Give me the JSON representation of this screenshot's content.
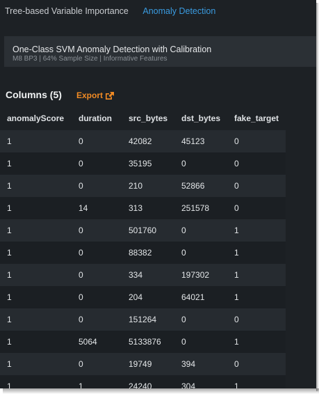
{
  "tabs": [
    {
      "label": "Tree-based Variable Importance",
      "active": false
    },
    {
      "label": "Anomaly Detection",
      "active": true
    }
  ],
  "model": {
    "title": "One-Class SVM Anomaly Detection with Calibration",
    "subtitle": "M8 BP3 | 64% Sample Size | Informative Features"
  },
  "columns_heading": "Columns (5)",
  "export_label": "Export",
  "export_icon": "external-link-icon",
  "table": {
    "headers": [
      "anomalyScore",
      "duration",
      "src_bytes",
      "dst_bytes",
      "fake_target"
    ],
    "rows": [
      [
        "1",
        "0",
        "42082",
        "45123",
        "0"
      ],
      [
        "1",
        "0",
        "35195",
        "0",
        "0"
      ],
      [
        "1",
        "0",
        "210",
        "52866",
        "0"
      ],
      [
        "1",
        "14",
        "313",
        "251578",
        "0"
      ],
      [
        "1",
        "0",
        "501760",
        "0",
        "1"
      ],
      [
        "1",
        "0",
        "88382",
        "0",
        "1"
      ],
      [
        "1",
        "0",
        "334",
        "197302",
        "1"
      ],
      [
        "1",
        "0",
        "204",
        "64021",
        "1"
      ],
      [
        "1",
        "0",
        "151264",
        "0",
        "0"
      ],
      [
        "1",
        "5064",
        "5133876",
        "0",
        "1"
      ],
      [
        "1",
        "0",
        "19749",
        "394",
        "0"
      ],
      [
        "1",
        "1",
        "24240",
        "304",
        "1"
      ]
    ]
  },
  "colors": {
    "background": "#1d2125",
    "accent_link": "#3a9be0",
    "export_orange": "#f08a24"
  }
}
